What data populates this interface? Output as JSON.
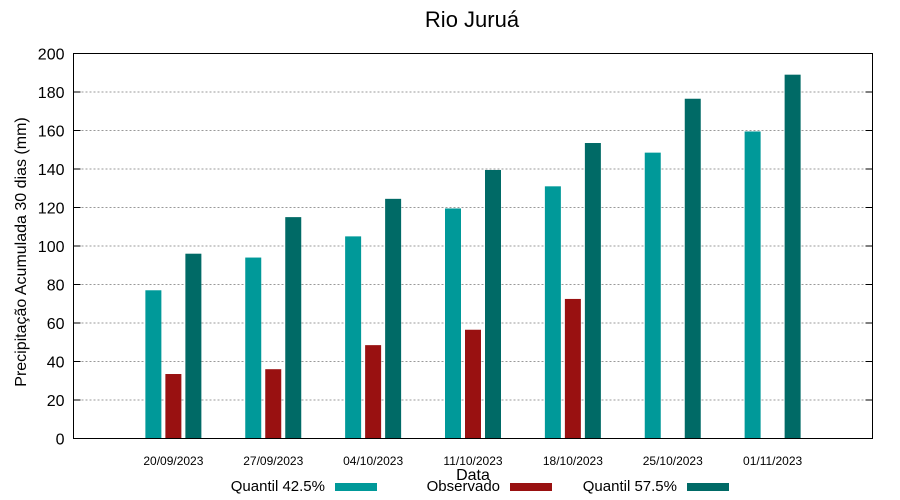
{
  "chart_data": {
    "type": "bar",
    "title": "Rio Juruá",
    "xlabel": "Data",
    "ylabel": "Precipitação Acumulada 30 dias (mm)",
    "ylim": [
      0,
      200
    ],
    "yticks": [
      0,
      20,
      40,
      60,
      80,
      100,
      120,
      140,
      160,
      180,
      200
    ],
    "grid": true,
    "legend_position": "bottom",
    "categories": [
      "20/09/2023",
      "27/09/2023",
      "04/10/2023",
      "11/10/2023",
      "18/10/2023",
      "25/10/2023",
      "01/11/2023"
    ],
    "series": [
      {
        "name": "Quantil 42.5%",
        "color": "#009999",
        "values": [
          77,
          94,
          105,
          119.5,
          131,
          148.5,
          159.5
        ]
      },
      {
        "name": "Observado",
        "color": "#991111",
        "values": [
          33.5,
          36,
          48.5,
          56.5,
          72.5,
          null,
          null
        ]
      },
      {
        "name": "Quantil 57.5%",
        "color": "#006a66",
        "values": [
          96,
          115,
          124.5,
          139.5,
          153.5,
          176.5,
          189
        ]
      }
    ]
  }
}
